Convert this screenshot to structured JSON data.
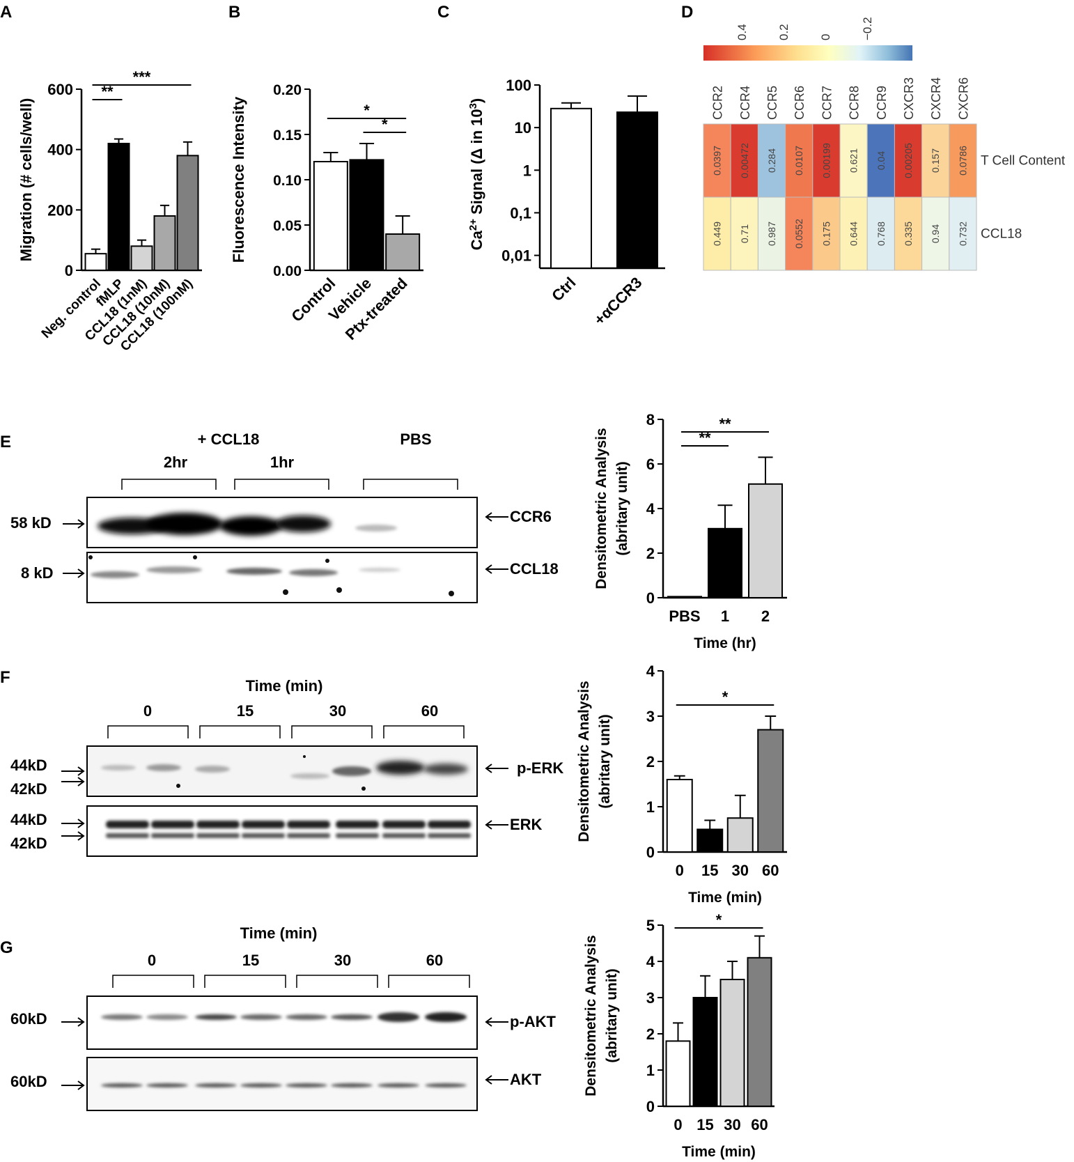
{
  "colors": {
    "white": "#ffffff",
    "black": "#000000",
    "light_gray": "#d4d4d4",
    "mid_gray": "#a8a8a8",
    "dark_gray": "#808080",
    "gray2": "#b0b0b0",
    "gray3": "#8c8c8c"
  },
  "panels": {
    "A": {
      "letter": "A",
      "chart_data": {
        "type": "bar",
        "categories": [
          "Neg. control",
          "fMLP",
          "CCL18 (1nM)",
          "CCL18 (10nM)",
          "CCL18 (100nM)"
        ],
        "values": [
          55,
          420,
          80,
          180,
          380
        ],
        "errors": [
          15,
          15,
          20,
          35,
          45
        ],
        "ylabel": "Migration (# cells/well)",
        "ylim": [
          0,
          600
        ],
        "yticks": [
          "0",
          "200",
          "400",
          "600"
        ],
        "significance": [
          {
            "from": 0,
            "to": 1,
            "label": "**"
          },
          {
            "from": 0,
            "to": 4,
            "label": "***"
          }
        ]
      }
    },
    "B": {
      "letter": "B",
      "chart_data": {
        "type": "bar",
        "categories": [
          "Control",
          "Vehicle",
          "Ptx-treated"
        ],
        "values": [
          0.12,
          0.122,
          0.04
        ],
        "errors": [
          0.01,
          0.018,
          0.02
        ],
        "ylabel": "Fluorescence Intensity",
        "ylim": [
          0,
          0.2
        ],
        "yticks": [
          "0.00",
          "0.05",
          "0.10",
          "0.15",
          "0.20"
        ],
        "significance": [
          {
            "from": 0,
            "to": 2,
            "label": "*"
          },
          {
            "from": 1,
            "to": 2,
            "label": "*"
          }
        ]
      }
    },
    "C": {
      "letter": "C",
      "chart_data": {
        "type": "bar",
        "scale": "log",
        "categories": [
          "Ctrl",
          "+αCCR3"
        ],
        "values": [
          28,
          23
        ],
        "errors_upper": [
          38,
          55
        ],
        "ylabel_pre": "Ca",
        "ylabel_sup": "2+",
        "ylabel_mid": " Signal (Δ in 10",
        "ylabel_sup2": "3",
        "ylabel_post": ")",
        "ylim": [
          0.005,
          100
        ],
        "yticks": [
          "100",
          "10",
          "1",
          "0,1",
          "0,01"
        ]
      }
    },
    "D": {
      "letter": "D",
      "chart_data": {
        "type": "heatmap",
        "scale_ticks": [
          "0.4",
          "0.2",
          "0",
          "−0.2"
        ],
        "columns": [
          "CCR2",
          "CCR4",
          "CCR5",
          "CCR6",
          "CCR7",
          "CCR8",
          "CCR9",
          "CXCR3",
          "CXCR4",
          "CXCR6"
        ],
        "rows": [
          "T Cell Content",
          "CCL18"
        ],
        "cell_values": [
          [
            "0.0397",
            "0.00472",
            "0.284",
            "0.0107",
            "0.00199",
            "0.621",
            "0.04",
            "0.00205",
            "0.157",
            "0.0786"
          ],
          [
            "0.449",
            "0.71",
            "0.987",
            "0.0552",
            "0.175",
            "0.644",
            "0.768",
            "0.335",
            "0.94",
            "0.732"
          ]
        ],
        "cell_colors": [
          [
            "#f5855a",
            "#d93b2e",
            "#9ec3df",
            "#f0784f",
            "#d93b2e",
            "#fbf6c4",
            "#4b74bb",
            "#d93b2e",
            "#fbd49a",
            "#f79a5e"
          ],
          [
            "#fdeda9",
            "#fdf4bd",
            "#eaf3e4",
            "#f5855a",
            "#fbc98a",
            "#fdf1b5",
            "#dcecf0",
            "#fcd998",
            "#eef6e7",
            "#e1eff2"
          ]
        ]
      }
    },
    "E": {
      "letter": "E",
      "blot": {
        "treatment": "+ CCL18",
        "control": "PBS",
        "groups": [
          "2hr",
          "1hr"
        ],
        "markers": [
          "58 kD",
          "8 kD"
        ],
        "bands": [
          "CCR6",
          "CCL18"
        ]
      },
      "chart_data": {
        "type": "bar",
        "categories": [
          "PBS",
          "1",
          "2"
        ],
        "values": [
          0.05,
          3.1,
          5.1
        ],
        "errors": [
          0,
          1.05,
          1.2
        ],
        "xlabel": "Time (hr)",
        "ylabel": "Densitometric Analysis",
        "ylabel2": "(abritary unit)",
        "ylim": [
          0,
          8
        ],
        "yticks": [
          "0",
          "2",
          "4",
          "6",
          "8"
        ],
        "significance": [
          {
            "from": 0,
            "to": 1,
            "label": "**"
          },
          {
            "from": 0,
            "to": 2,
            "label": "**"
          }
        ]
      }
    },
    "F": {
      "letter": "F",
      "blot": {
        "time_label": "Time (min)",
        "groups": [
          "0",
          "15",
          "30",
          "60"
        ],
        "markers_top": [
          "44kD",
          "42kD"
        ],
        "markers_bottom": [
          "44kD",
          "42kD"
        ],
        "bands": [
          "p-ERK",
          "ERK"
        ]
      },
      "chart_data": {
        "type": "bar",
        "categories": [
          "0",
          "15",
          "30",
          "60"
        ],
        "values": [
          1.6,
          0.5,
          0.75,
          2.7
        ],
        "errors": [
          0.08,
          0.2,
          0.5,
          0.3
        ],
        "xlabel": "Time (min)",
        "ylabel": "Densitometric Analysis",
        "ylabel2": "(abritary unit)",
        "ylim": [
          0,
          4
        ],
        "yticks": [
          "0",
          "1",
          "2",
          "3",
          "4"
        ],
        "significance": [
          {
            "from": 0,
            "to": 3,
            "label": "*"
          }
        ]
      }
    },
    "G": {
      "letter": "G",
      "blot": {
        "time_label": "Time (min)",
        "groups": [
          "0",
          "15",
          "30",
          "60"
        ],
        "markers": [
          "60kD",
          "60kD"
        ],
        "bands": [
          "p-AKT",
          "AKT"
        ]
      },
      "chart_data": {
        "type": "bar",
        "categories": [
          "0",
          "15",
          "30",
          "60"
        ],
        "values": [
          1.8,
          3.0,
          3.5,
          4.1
        ],
        "errors": [
          0.5,
          0.6,
          0.5,
          0.6
        ],
        "xlabel": "Time (min)",
        "ylabel": "Densitometric Analysis",
        "ylabel2": "(abritary unit)",
        "ylim": [
          0,
          5
        ],
        "yticks": [
          "0",
          "1",
          "2",
          "3",
          "4",
          "5"
        ],
        "significance": [
          {
            "from": 0,
            "to": 3,
            "label": "*"
          }
        ]
      }
    }
  }
}
